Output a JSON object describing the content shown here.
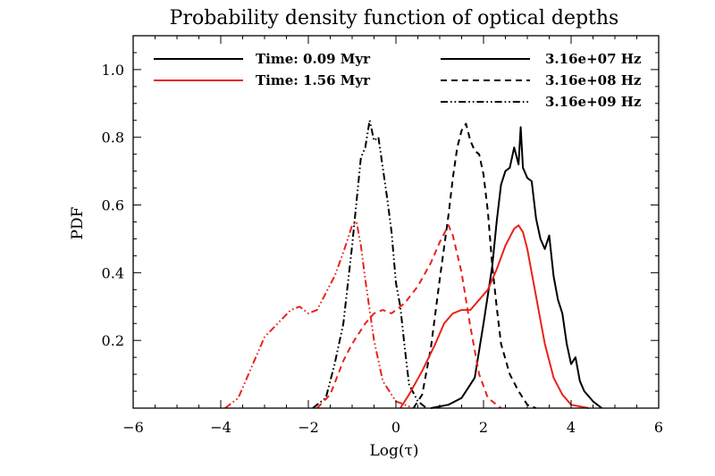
{
  "chart_data": {
    "type": "line",
    "title": "Probability density function of optical depths",
    "xlabel": "Log(τ)",
    "ylabel": "PDF",
    "xlim": [
      -6,
      6
    ],
    "ylim": [
      0,
      1.1
    ],
    "xticks": [
      -6,
      -4,
      -2,
      0,
      2,
      4,
      6
    ],
    "yticks": [
      0.2,
      0.4,
      0.6,
      0.8,
      1.0
    ],
    "xtick_labels": [
      "−6",
      "−4",
      "−2",
      "0",
      "2",
      "4",
      "6"
    ],
    "ytick_labels": [
      "0.2",
      "0.4",
      "0.6",
      "0.8",
      "1.0"
    ],
    "grid": false,
    "legend": {
      "time": {
        "placement": "top-left",
        "entries": [
          {
            "label": "Time: 0.09 Myr",
            "color": "#000000"
          },
          {
            "label": "Time: 1.56 Myr",
            "color": "#e8231a"
          }
        ]
      },
      "frequency": {
        "placement": "top-right",
        "entries": [
          {
            "label": "3.16e+07 Hz",
            "dash": "solid"
          },
          {
            "label": "3.16e+08 Hz",
            "dash": "dashed"
          },
          {
            "label": "3.16e+09 Hz",
            "dash": "dash-dot-dot"
          }
        ]
      }
    },
    "series": [
      {
        "time": "Time: 0.09 Myr",
        "frequency": "3.16e+07 Hz",
        "color": "#000000",
        "dash": "solid",
        "x": [
          0.8,
          1.2,
          1.5,
          1.8,
          2.0,
          2.2,
          2.3,
          2.4,
          2.5,
          2.6,
          2.7,
          2.8,
          2.85,
          2.9,
          3.0,
          3.1,
          3.2,
          3.3,
          3.4,
          3.5,
          3.6,
          3.7,
          3.8,
          3.9,
          4.0,
          4.1,
          4.2,
          4.3,
          4.5,
          4.7
        ],
        "y": [
          0,
          0.01,
          0.03,
          0.09,
          0.25,
          0.42,
          0.55,
          0.66,
          0.7,
          0.71,
          0.77,
          0.72,
          0.83,
          0.71,
          0.68,
          0.67,
          0.56,
          0.5,
          0.47,
          0.51,
          0.39,
          0.32,
          0.28,
          0.19,
          0.13,
          0.15,
          0.08,
          0.05,
          0.02,
          0
        ]
      },
      {
        "time": "Time: 0.09 Myr",
        "frequency": "3.16e+08 Hz",
        "color": "#000000",
        "dash": "dashed",
        "x": [
          0.4,
          0.6,
          0.8,
          1.0,
          1.2,
          1.3,
          1.4,
          1.5,
          1.6,
          1.7,
          1.8,
          1.9,
          2.0,
          2.1,
          2.2,
          2.3,
          2.4,
          2.6,
          2.8,
          3.0,
          3.2
        ],
        "y": [
          0,
          0.04,
          0.18,
          0.38,
          0.57,
          0.68,
          0.77,
          0.82,
          0.84,
          0.79,
          0.76,
          0.75,
          0.69,
          0.58,
          0.42,
          0.3,
          0.19,
          0.1,
          0.05,
          0.01,
          0
        ]
      },
      {
        "time": "Time: 0.09 Myr",
        "frequency": "3.16e+09 Hz",
        "color": "#000000",
        "dash": "dash-dot-dot",
        "x": [
          -1.9,
          -1.6,
          -1.4,
          -1.2,
          -1.0,
          -0.9,
          -0.8,
          -0.7,
          -0.6,
          -0.5,
          -0.4,
          -0.3,
          -0.2,
          -0.1,
          0.0,
          0.1,
          0.2,
          0.3,
          0.5,
          0.7
        ],
        "y": [
          0,
          0.03,
          0.13,
          0.25,
          0.48,
          0.61,
          0.74,
          0.77,
          0.85,
          0.79,
          0.8,
          0.71,
          0.62,
          0.52,
          0.37,
          0.3,
          0.18,
          0.07,
          0.02,
          0
        ]
      },
      {
        "time": "Time: 1.56 Myr",
        "frequency": "3.16e+07 Hz",
        "color": "#e8231a",
        "dash": "solid",
        "x": [
          0.1,
          0.3,
          0.6,
          0.9,
          1.1,
          1.3,
          1.5,
          1.7,
          1.9,
          2.1,
          2.3,
          2.5,
          2.7,
          2.8,
          2.9,
          3.0,
          3.2,
          3.4,
          3.6,
          3.8,
          4.0,
          4.2,
          4.4
        ],
        "y": [
          0,
          0.04,
          0.11,
          0.19,
          0.25,
          0.28,
          0.29,
          0.29,
          0.32,
          0.35,
          0.41,
          0.48,
          0.53,
          0.54,
          0.52,
          0.47,
          0.33,
          0.19,
          0.09,
          0.04,
          0.01,
          0.005,
          0
        ]
      },
      {
        "time": "Time: 1.56 Myr",
        "frequency": "3.16e+08 Hz",
        "color": "#e8231a",
        "dash": "dashed",
        "x": [
          -1.8,
          -1.5,
          -1.2,
          -1.0,
          -0.7,
          -0.5,
          -0.3,
          -0.1,
          0.2,
          0.5,
          0.8,
          1.0,
          1.2,
          1.3,
          1.5,
          1.7,
          1.9,
          2.1,
          2.4
        ],
        "y": [
          0,
          0.04,
          0.14,
          0.19,
          0.25,
          0.28,
          0.29,
          0.28,
          0.31,
          0.36,
          0.43,
          0.49,
          0.54,
          0.51,
          0.4,
          0.24,
          0.1,
          0.03,
          0
        ]
      },
      {
        "time": "Time: 1.56 Myr",
        "frequency": "3.16e+09 Hz",
        "color": "#e8231a",
        "dash": "dash-dot-dot",
        "x": [
          -3.9,
          -3.6,
          -3.3,
          -3.0,
          -2.7,
          -2.4,
          -2.2,
          -2.0,
          -1.8,
          -1.6,
          -1.4,
          -1.2,
          -1.0,
          -0.9,
          -0.8,
          -0.7,
          -0.5,
          -0.3,
          0.0,
          0.4
        ],
        "y": [
          0,
          0.03,
          0.12,
          0.21,
          0.25,
          0.29,
          0.3,
          0.28,
          0.29,
          0.34,
          0.39,
          0.46,
          0.54,
          0.55,
          0.48,
          0.38,
          0.2,
          0.08,
          0.02,
          0
        ]
      }
    ]
  }
}
